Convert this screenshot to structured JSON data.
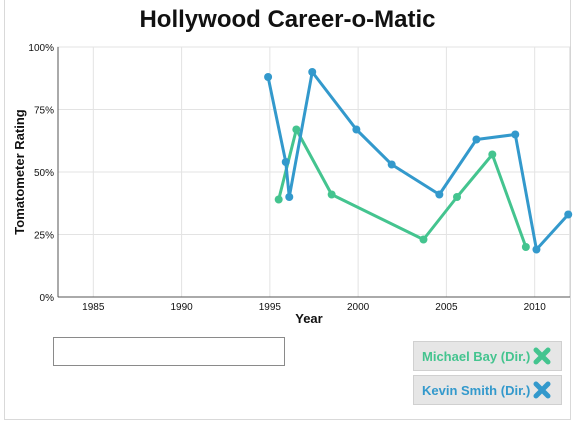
{
  "title": "Hollywood Career-o-Matic",
  "search": {
    "value": "",
    "placeholder": ""
  },
  "chips": [
    {
      "label": "Michael Bay (Dir.)",
      "color": "#44c48f"
    },
    {
      "label": "Kevin Smith (Dir.)",
      "color": "#3399cc"
    }
  ],
  "chart_data": {
    "type": "line",
    "xlabel": "Year",
    "ylabel": "Tomatometer Rating",
    "xlim": [
      1983,
      2012
    ],
    "ylim": [
      0,
      100
    ],
    "xticks": [
      1985,
      1990,
      1995,
      2000,
      2005,
      2010
    ],
    "yticks": [
      0,
      25,
      50,
      75,
      100
    ],
    "ytick_labels": [
      "0%",
      "25%",
      "50%",
      "75%",
      "100%"
    ],
    "grid": true,
    "series": [
      {
        "name": "Kevin Smith (Dir.)",
        "color": "#3399cc",
        "x": [
          1994.9,
          1995.9,
          1996.1,
          1997.4,
          1999.9,
          2001.9,
          2004.6,
          2006.7,
          2008.9,
          2010.1,
          2011.9
        ],
        "y": [
          88,
          54,
          40,
          90,
          67,
          53,
          41,
          63,
          65,
          19,
          33
        ]
      },
      {
        "name": "Michael Bay (Dir.)",
        "color": "#44c48f",
        "x": [
          1995.5,
          1996.5,
          1998.5,
          2003.7,
          2005.6,
          2007.6,
          2009.5
        ],
        "y": [
          39,
          67,
          41,
          23,
          40,
          57,
          20
        ]
      }
    ]
  }
}
